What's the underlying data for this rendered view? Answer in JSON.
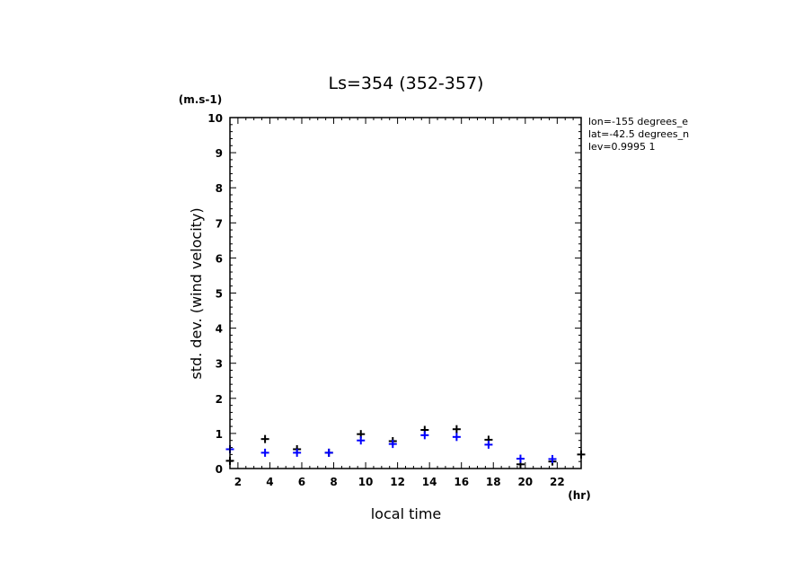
{
  "chart_data": {
    "type": "scatter",
    "title": "Ls=354 (352-357)",
    "ylabel": "std. dev. (wind velocity)",
    "yunit": "(m.s-1)",
    "xlabel": "local time",
    "xunit": "(hr)",
    "xlim": [
      1.5,
      23.5
    ],
    "ylim": [
      0,
      10
    ],
    "xticks": [
      "2",
      "4",
      "6",
      "8",
      "10",
      "12",
      "14",
      "16",
      "18",
      "20",
      "22"
    ],
    "yticks": [
      "0",
      "1",
      "2",
      "3",
      "4",
      "5",
      "6",
      "7",
      "8",
      "9",
      "10"
    ],
    "info": [
      "lon=-155 degrees_e",
      "lat=-42.5 degrees_n",
      "lev=0.9995 1"
    ],
    "colors": {
      "black": "#000000",
      "blue": "#0000ff"
    },
    "series": [
      {
        "color": "black",
        "points": [
          [
            1.5,
            0.22
          ],
          [
            3.7,
            0.84
          ],
          [
            5.7,
            0.55
          ],
          [
            7.7,
            0.45
          ],
          [
            9.7,
            0.98
          ],
          [
            11.7,
            0.78
          ],
          [
            13.7,
            1.1
          ],
          [
            15.7,
            1.12
          ],
          [
            17.7,
            0.82
          ],
          [
            19.7,
            0.12
          ],
          [
            21.7,
            0.2
          ],
          [
            23.5,
            0.4
          ]
        ]
      },
      {
        "color": "blue",
        "points": [
          [
            1.5,
            0.55
          ],
          [
            3.7,
            0.45
          ],
          [
            5.7,
            0.45
          ],
          [
            7.7,
            0.45
          ],
          [
            9.7,
            0.8
          ],
          [
            11.7,
            0.7
          ],
          [
            13.7,
            0.95
          ],
          [
            15.7,
            0.9
          ],
          [
            17.7,
            0.68
          ],
          [
            19.7,
            0.28
          ],
          [
            21.7,
            0.27
          ]
        ]
      }
    ]
  }
}
